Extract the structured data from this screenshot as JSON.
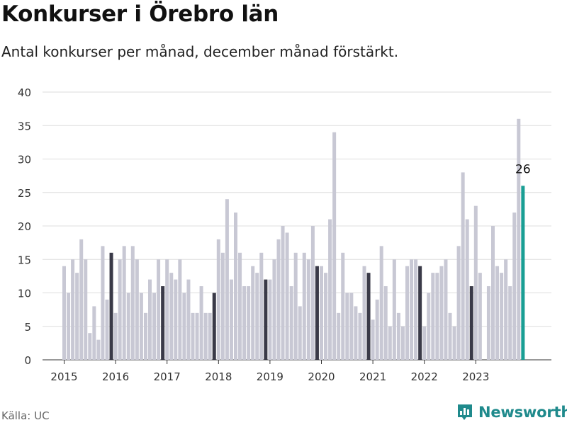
{
  "header": {
    "title": "Konkurser i Örebro län",
    "subtitle": "Antal konkurser per månad, december månad förstärkt."
  },
  "footer": {
    "source": "Källa: UC",
    "brand": "Newsworthy",
    "brand_icon": "bar-chart-logo-icon"
  },
  "colors": {
    "bar": "#c8c8d4",
    "december": "#3a3a48",
    "highlight": "#1a9e94",
    "grid": "#dddddd",
    "brand": "#1f8a8c"
  },
  "chart_data": {
    "type": "bar",
    "title": "Konkurser i Örebro län",
    "subtitle": "Antal konkurser per månad, december månad förstärkt.",
    "xlabel": "",
    "ylabel": "",
    "ylim": [
      0,
      40
    ],
    "yticks": [
      0,
      5,
      10,
      15,
      20,
      25,
      30,
      35,
      40
    ],
    "year_labels": [
      "2015",
      "2016",
      "2017",
      "2018",
      "2019",
      "2020",
      "2021",
      "2022",
      "2023"
    ],
    "start": "2015-01",
    "highlight_label": "26",
    "grid": true,
    "values": [
      14,
      10,
      15,
      13,
      18,
      15,
      4,
      8,
      3,
      17,
      9,
      16,
      7,
      15,
      17,
      10,
      17,
      15,
      10,
      7,
      12,
      10,
      15,
      11,
      15,
      13,
      12,
      15,
      10,
      12,
      7,
      7,
      11,
      7,
      7,
      10,
      18,
      16,
      24,
      12,
      22,
      16,
      11,
      11,
      14,
      13,
      16,
      12,
      12,
      15,
      18,
      20,
      19,
      11,
      16,
      8,
      16,
      15,
      20,
      14,
      14,
      13,
      21,
      34,
      7,
      16,
      10,
      10,
      8,
      7,
      14,
      13,
      6,
      9,
      17,
      11,
      5,
      15,
      7,
      5,
      14,
      15,
      15,
      14,
      5,
      10,
      13,
      13,
      14,
      15,
      7,
      5,
      17,
      28,
      21,
      11,
      23,
      13,
      0,
      11,
      20,
      14,
      13,
      15,
      11,
      22,
      36,
      26
    ]
  }
}
